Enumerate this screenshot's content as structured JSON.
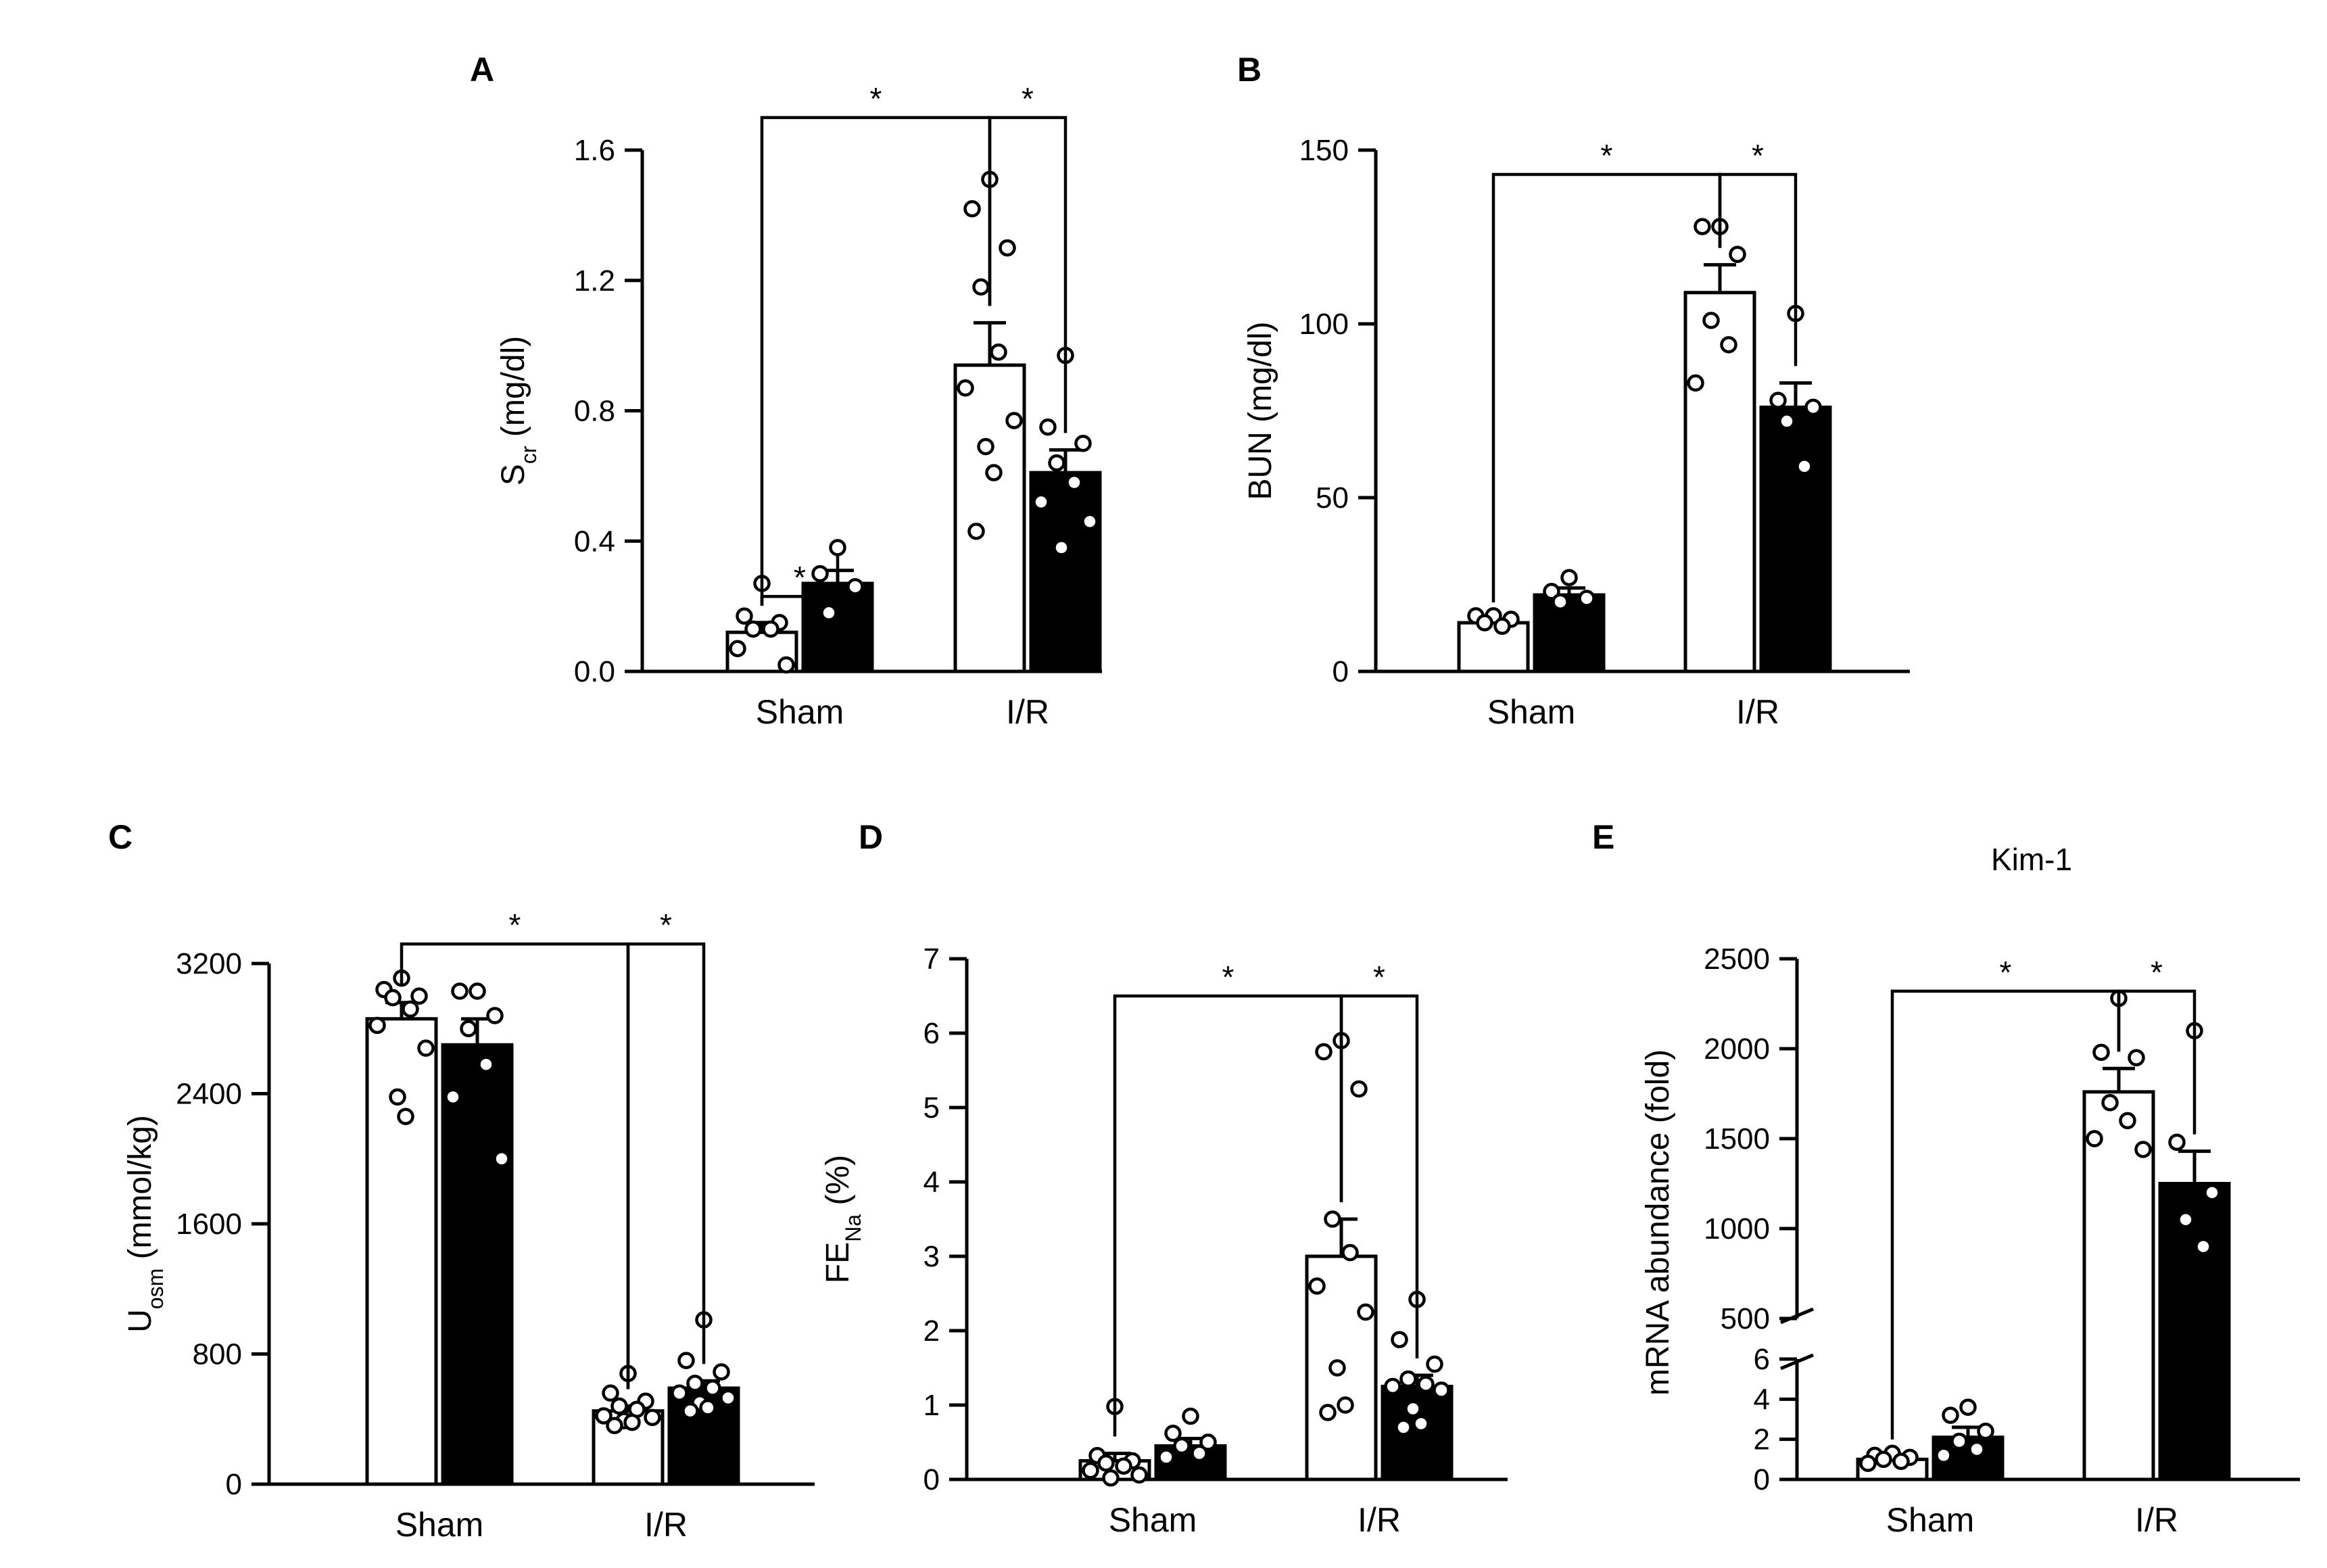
{
  "colors": {
    "control": "#ffffff",
    "treated": "#000000",
    "ink": "#000000"
  },
  "chart_data": [
    {
      "panel": "A",
      "type": "bar",
      "title": "",
      "ylabel_main": "S",
      "ylabel_sub": "cr",
      "ylabel_rest": " (mg/dl)",
      "ylim": [
        0,
        1.6
      ],
      "ticks": [
        0.0,
        0.4,
        0.8,
        1.2,
        1.6
      ],
      "tick_labels": [
        "0.0",
        "0.4",
        "0.8",
        "1.2",
        "1.6"
      ],
      "categories": [
        "Sham",
        "I/R"
      ],
      "series": [
        {
          "name": "control",
          "values": [
            0.12,
            0.94
          ],
          "sem": [
            0.03,
            0.13
          ]
        },
        {
          "name": "treated",
          "values": [
            0.27,
            0.61
          ],
          "sem": [
            0.04,
            0.07
          ]
        }
      ],
      "points": [
        [
          [
            0.27,
            0.17,
            0.15,
            0.13,
            0.13,
            0.07,
            0.02
          ],
          [
            0.38,
            0.3,
            0.26,
            0.18
          ]
        ],
        [
          [
            1.51,
            1.42,
            1.3,
            1.18,
            0.98,
            0.87,
            0.77,
            0.69,
            0.61,
            0.43
          ],
          [
            0.97,
            0.75,
            0.7,
            0.64,
            0.58,
            0.52,
            0.46,
            0.38
          ]
        ]
      ],
      "brackets": [
        {
          "from": [
            0,
            0
          ],
          "to": [
            0,
            1
          ],
          "y": 0.23,
          "label": "*"
        },
        {
          "from": [
            0,
            0
          ],
          "to": [
            1,
            0
          ],
          "y": 1.7,
          "label": "*"
        },
        {
          "from": [
            1,
            0
          ],
          "to": [
            1,
            1
          ],
          "y": 1.7,
          "label": "*"
        }
      ]
    },
    {
      "panel": "B",
      "type": "bar",
      "title": "",
      "ylabel_main": "BUN (mg/dl)",
      "ylabel_sub": "",
      "ylabel_rest": "",
      "ylim": [
        0,
        150
      ],
      "ticks": [
        0,
        50,
        100,
        150
      ],
      "tick_labels": [
        "0",
        "50",
        "100",
        "150"
      ],
      "categories": [
        "Sham",
        "I/R"
      ],
      "series": [
        {
          "name": "control",
          "values": [
            14,
            109
          ],
          "sem": [
            1,
            8
          ]
        },
        {
          "name": "treated",
          "values": [
            22,
            76
          ],
          "sem": [
            2,
            7
          ]
        }
      ],
      "points": [
        [
          [
            16,
            16,
            15,
            14,
            13
          ],
          [
            27,
            23,
            21,
            20
          ]
        ],
        [
          [
            128,
            128,
            120,
            101,
            94,
            83
          ],
          [
            103,
            78,
            76,
            72,
            59
          ]
        ]
      ],
      "brackets": [
        {
          "from": [
            0,
            0
          ],
          "to": [
            1,
            0
          ],
          "y": 143,
          "label": "*"
        },
        {
          "from": [
            1,
            0
          ],
          "to": [
            1,
            1
          ],
          "y": 143,
          "label": "*"
        }
      ]
    },
    {
      "panel": "C",
      "type": "bar",
      "title": "",
      "ylabel_main": "U",
      "ylabel_sub": "osm",
      "ylabel_rest": " (mmol/kg)",
      "ylim": [
        0,
        3200
      ],
      "ticks": [
        0,
        800,
        1600,
        2400,
        3200
      ],
      "tick_labels": [
        "0",
        "800",
        "1600",
        "2400",
        "3200"
      ],
      "categories": [
        "Sham",
        "I/R"
      ],
      "series": [
        {
          "name": "control",
          "values": [
            2860,
            450
          ],
          "sem": [
            100,
            30
          ]
        },
        {
          "name": "treated",
          "values": [
            2700,
            590
          ],
          "sem": [
            160,
            45
          ]
        }
      ],
      "points": [
        [
          [
            3110,
            3040,
            3000,
            2990,
            2920,
            2820,
            2680,
            2380,
            2260
          ],
          [
            3030,
            3030,
            2880,
            2800,
            2580,
            2380,
            2000
          ]
        ],
        [
          [
            680,
            560,
            510,
            480,
            460,
            420,
            410,
            390,
            380,
            360
          ],
          [
            1010,
            760,
            690,
            620,
            590,
            560,
            530,
            500,
            470,
            450
          ]
        ]
      ],
      "brackets": [
        {
          "from": [
            0,
            0
          ],
          "to": [
            1,
            0
          ],
          "y": 3320,
          "label": "*"
        },
        {
          "from": [
            1,
            0
          ],
          "to": [
            1,
            1
          ],
          "y": 3320,
          "label": "*"
        }
      ]
    },
    {
      "panel": "D",
      "type": "bar",
      "title": "",
      "ylabel_main": "FE",
      "ylabel_sub": "Na",
      "ylabel_rest": " (%)",
      "ylim": [
        0,
        7
      ],
      "ticks": [
        0,
        1,
        2,
        3,
        4,
        5,
        6,
        7
      ],
      "tick_labels": [
        "0",
        "1",
        "2",
        "3",
        "4",
        "5",
        "6",
        "7"
      ],
      "categories": [
        "Sham",
        "I/R"
      ],
      "series": [
        {
          "name": "control",
          "values": [
            0.25,
            3.0
          ],
          "sem": [
            0.1,
            0.5
          ]
        },
        {
          "name": "treated",
          "values": [
            0.45,
            1.25
          ],
          "sem": [
            0.1,
            0.15
          ]
        }
      ],
      "points": [
        [
          [
            0.98,
            0.32,
            0.25,
            0.22,
            0.18,
            0.12,
            0.06,
            0.02
          ],
          [
            0.85,
            0.62,
            0.5,
            0.45,
            0.35,
            0.3
          ]
        ],
        [
          [
            5.9,
            5.75,
            5.25,
            3.5,
            3.05,
            2.6,
            2.25,
            1.5,
            1.0,
            0.9
          ],
          [
            2.42,
            1.88,
            1.55,
            1.35,
            1.28,
            1.25,
            1.2,
            0.95,
            0.75,
            0.7
          ]
        ]
      ],
      "brackets": [
        {
          "from": [
            0,
            0
          ],
          "to": [
            1,
            0
          ],
          "y": 6.5,
          "label": "*"
        },
        {
          "from": [
            1,
            0
          ],
          "to": [
            1,
            1
          ],
          "y": 6.5,
          "label": "*"
        }
      ]
    },
    {
      "panel": "E",
      "type": "bar",
      "title": "Kim-1",
      "ylabel_main": "mRNA abundance (fold)",
      "ylabel_sub": "",
      "ylabel_rest": "",
      "broken_axis": {
        "lower": {
          "range": [
            0,
            6
          ],
          "ticks": [
            0,
            2,
            4,
            6
          ],
          "tick_labels": [
            "0",
            "2",
            "4",
            "6"
          ]
        },
        "upper": {
          "range": [
            500,
            2500
          ],
          "ticks": [
            500,
            1000,
            1500,
            2000,
            2500
          ],
          "tick_labels": [
            "500",
            "1000",
            "1500",
            "2000",
            "2500"
          ]
        }
      },
      "categories": [
        "Sham",
        "I/R"
      ],
      "series": [
        {
          "name": "control",
          "values": [
            1.0,
            1760
          ],
          "sem": [
            0.15,
            130
          ]
        },
        {
          "name": "treated",
          "values": [
            2.1,
            1250
          ],
          "sem": [
            0.5,
            180
          ]
        }
      ],
      "points": [
        [
          [
            1.3,
            1.2,
            1.1,
            1.0,
            0.9,
            0.8
          ],
          [
            3.6,
            3.2,
            2.4,
            1.9,
            1.5,
            1.2
          ]
        ],
        [
          [
            2280,
            1980,
            1950,
            1700,
            1600,
            1500,
            1440
          ],
          [
            2100,
            1480,
            1200,
            1050,
            900
          ]
        ]
      ],
      "brackets": [
        {
          "from": [
            0,
            0
          ],
          "to": [
            1,
            0
          ],
          "y": 2320,
          "label": "*"
        },
        {
          "from": [
            1,
            0
          ],
          "to": [
            1,
            1
          ],
          "y": 2320,
          "label": "*"
        }
      ]
    }
  ]
}
